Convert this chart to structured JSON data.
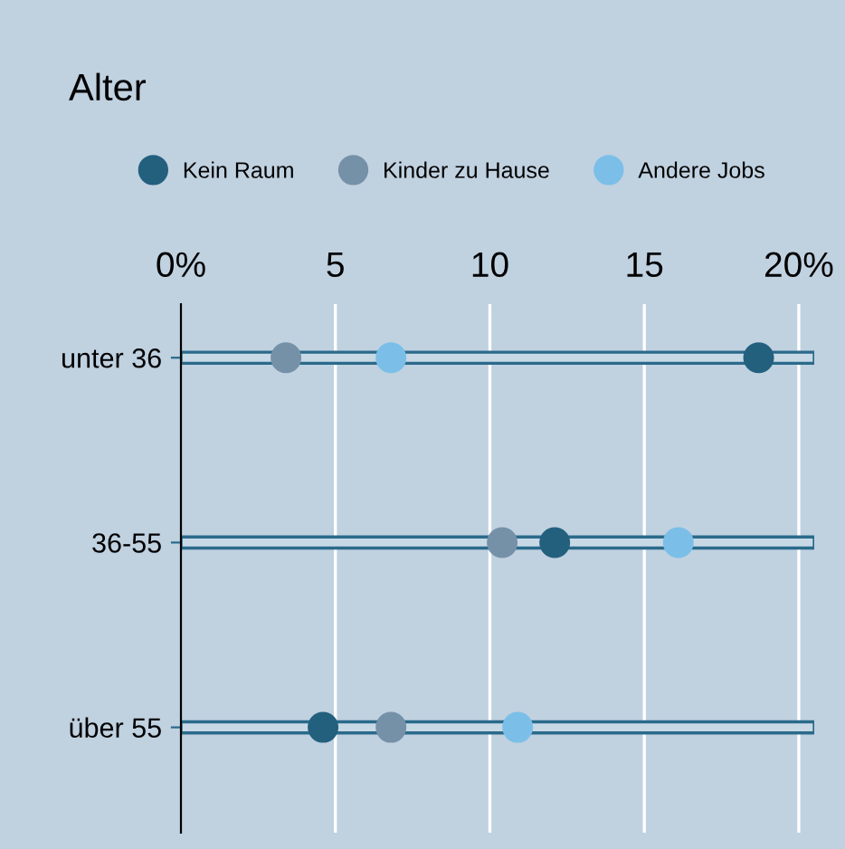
{
  "chart_data": {
    "type": "scatter",
    "title": "Alter",
    "orientation": "horizontal",
    "categories": [
      "unter 36",
      "36-55",
      "über 55"
    ],
    "series": [
      {
        "type": "bar",
        "color": "#c8d9e6",
        "values": [
          20.5,
          20.5,
          20.5
        ]
      },
      {
        "name": "Kein Raum",
        "color": "#23607e",
        "values": [
          18.7,
          12.1,
          4.6
        ]
      },
      {
        "name": "Kinder zu Hause",
        "color": "#7591a8",
        "values": [
          3.4,
          10.4,
          6.8
        ]
      },
      {
        "name": "Andere Jobs",
        "color": "#7bbfe8",
        "values": [
          6.8,
          16.1,
          10.9
        ]
      }
    ],
    "xlim": [
      0,
      20.5
    ],
    "xticks": [
      {
        "value": 0,
        "label": "0%"
      },
      5,
      10,
      15,
      {
        "value": 20,
        "label": "20%"
      }
    ],
    "grid": "x",
    "legend": "top",
    "marker": "circle"
  }
}
